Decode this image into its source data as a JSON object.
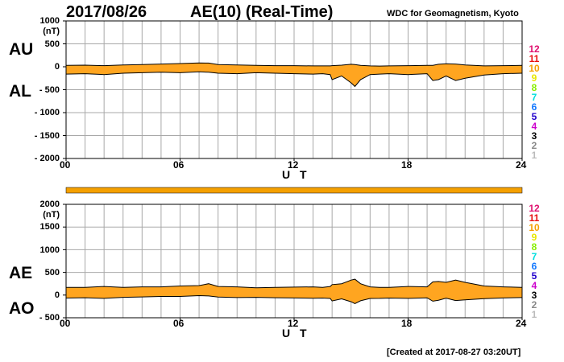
{
  "header": {
    "date": "2017/08/26",
    "title": "AE(10) (Real-Time)",
    "org": "WDC for Geomagnetism, Kyoto"
  },
  "footer": {
    "created": "[Created at 2017-08-27 03:20UT]"
  },
  "stations": [
    {
      "label": "12",
      "color": "#e0116f"
    },
    {
      "label": "11",
      "color": "#e81010"
    },
    {
      "label": "10",
      "color": "#f5a000"
    },
    {
      "label": "9",
      "color": "#e8e800"
    },
    {
      "label": "8",
      "color": "#88ee00"
    },
    {
      "label": "7",
      "color": "#00dddd"
    },
    {
      "label": "6",
      "color": "#1177ff"
    },
    {
      "label": "5",
      "color": "#2200cc"
    },
    {
      "label": "4",
      "color": "#cc00cc"
    },
    {
      "label": "3",
      "color": "#000000"
    },
    {
      "label": "2",
      "color": "#888888"
    },
    {
      "label": "1",
      "color": "#bbbbbb"
    }
  ],
  "colors": {
    "fill": "#ffa520",
    "line": "#000000",
    "grid": "#a8a8a8",
    "coverage_bar": "#f5a000"
  },
  "chart_data": [
    {
      "type": "area",
      "panel": "top",
      "series_labels": [
        "AU",
        "AL"
      ],
      "unit": "(nT)",
      "xlabel": "U T",
      "xlim": [
        0,
        24
      ],
      "xticks": [
        "00",
        "06",
        "12",
        "18",
        "24"
      ],
      "ylim": [
        -2000,
        1000
      ],
      "yticks": [
        "1000",
        "500",
        "0",
        "- 500",
        "- 1000",
        "- 1500",
        "- 2000"
      ],
      "x": [
        0,
        1,
        2,
        3,
        4,
        5,
        6,
        7,
        7.5,
        8,
        9,
        10,
        11,
        12,
        13,
        13.5,
        13.9,
        14,
        14.5,
        15,
        15.2,
        15.5,
        16,
        16.5,
        17,
        18,
        19,
        19.3,
        19.6,
        20,
        20.5,
        21,
        22,
        23,
        24
      ],
      "series": [
        {
          "name": "AU",
          "values": [
            30,
            35,
            25,
            40,
            50,
            60,
            70,
            85,
            80,
            50,
            40,
            30,
            25,
            25,
            20,
            20,
            20,
            25,
            35,
            55,
            50,
            30,
            20,
            15,
            20,
            25,
            30,
            30,
            55,
            65,
            60,
            40,
            20,
            25,
            30
          ]
        },
        {
          "name": "AL",
          "values": [
            -160,
            -150,
            -170,
            -140,
            -130,
            -120,
            -130,
            -110,
            -120,
            -140,
            -150,
            -130,
            -140,
            -150,
            -160,
            -150,
            -170,
            -280,
            -200,
            -350,
            -430,
            -280,
            -170,
            -160,
            -150,
            -170,
            -150,
            -300,
            -280,
            -200,
            -300,
            -250,
            -180,
            -150,
            -140
          ]
        }
      ]
    },
    {
      "type": "area",
      "panel": "bottom",
      "series_labels": [
        "AE",
        "AO"
      ],
      "unit": "(nT)",
      "xlabel": "U T",
      "xlim": [
        0,
        24
      ],
      "xticks": [
        "00",
        "06",
        "12",
        "18",
        "24"
      ],
      "ylim": [
        -500,
        2000
      ],
      "yticks": [
        "2000",
        "1500",
        "1000",
        "500",
        "0",
        "- 500"
      ],
      "x": [
        0,
        1,
        2,
        3,
        4,
        5,
        6,
        7,
        7.5,
        8,
        9,
        10,
        11,
        12,
        13,
        13.5,
        13.9,
        14,
        14.5,
        15,
        15.2,
        15.5,
        16,
        16.5,
        17,
        18,
        19,
        19.3,
        19.6,
        20,
        20.5,
        21,
        22,
        23,
        24
      ],
      "series": [
        {
          "name": "AE",
          "values": [
            170,
            170,
            190,
            170,
            180,
            180,
            200,
            210,
            250,
            190,
            180,
            160,
            170,
            175,
            180,
            170,
            190,
            230,
            250,
            330,
            350,
            250,
            180,
            170,
            170,
            190,
            180,
            290,
            300,
            280,
            330,
            280,
            200,
            180,
            170
          ]
        },
        {
          "name": "AO",
          "values": [
            -65,
            -58,
            -73,
            -50,
            -40,
            -30,
            -30,
            -13,
            -20,
            -45,
            -55,
            -50,
            -58,
            -63,
            -70,
            -65,
            -75,
            -130,
            -83,
            -148,
            -190,
            -125,
            -75,
            -73,
            -65,
            -73,
            -60,
            -135,
            -113,
            -68,
            -120,
            -105,
            -80,
            -63,
            -55
          ]
        }
      ]
    }
  ]
}
